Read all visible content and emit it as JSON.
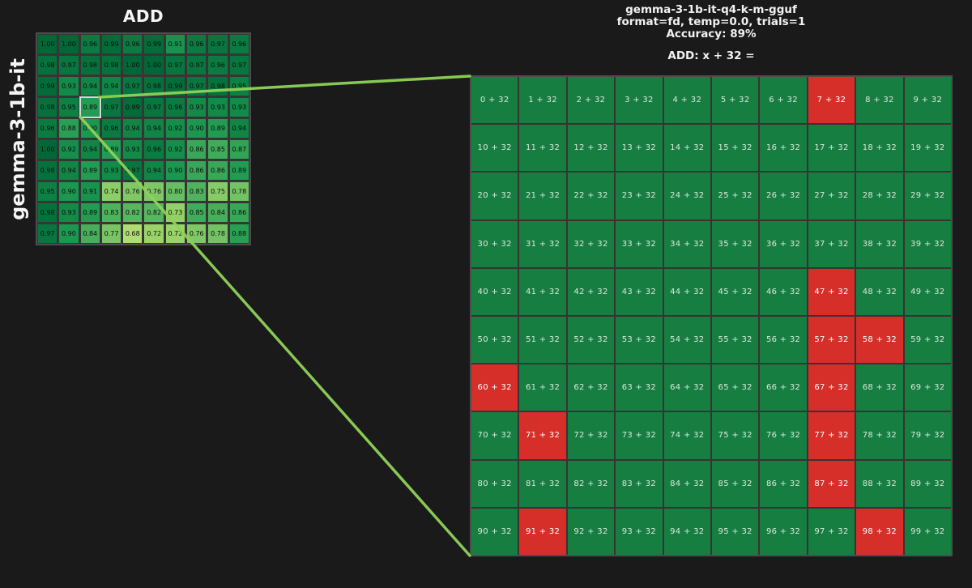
{
  "page": {
    "background": "#1a1a1a"
  },
  "heatmap_panel": {
    "title": "ADD",
    "ylabel": "gemma-3-1b-it",
    "selected_value": "0.89"
  },
  "detail_panel": {
    "title_line1": "gemma-3-1b-it-q4-k-m-gguf",
    "title_line2": "format=fd, temp=0.0, trials=1",
    "title_line3": "Accuracy: 89%",
    "accuracy_percent": 89,
    "subtitle": "ADD: x + 32 ="
  },
  "colors": {
    "background": "#1a1a1a",
    "correct_green": "#177e41",
    "incorrect_red": "#d62f2a",
    "connector_green": "#8ed258",
    "highlight_border": "#d9d9d9"
  },
  "chart_data": [
    {
      "type": "heatmap",
      "title": "ADD",
      "row_axis_label": "gemma-3-1b-it",
      "rows": 10,
      "cols": 10,
      "colormap": "RdYlGn",
      "vmin": 0,
      "vmax": 1,
      "values": [
        [
          1.0,
          1.0,
          0.96,
          0.99,
          0.96,
          0.99,
          0.91,
          0.96,
          0.97,
          0.96
        ],
        [
          0.98,
          0.97,
          0.98,
          0.98,
          1.0,
          1.0,
          0.97,
          0.97,
          0.96,
          0.97
        ],
        [
          0.99,
          0.93,
          0.94,
          0.94,
          0.97,
          0.98,
          0.99,
          0.97,
          0.98,
          0.95
        ],
        [
          0.98,
          0.95,
          0.89,
          0.97,
          0.99,
          0.97,
          0.96,
          0.93,
          0.93,
          0.93
        ],
        [
          0.96,
          0.88,
          0.9,
          0.96,
          0.94,
          0.94,
          0.92,
          0.9,
          0.89,
          0.94
        ],
        [
          1.0,
          0.92,
          0.94,
          0.89,
          0.93,
          0.96,
          0.92,
          0.86,
          0.85,
          0.87
        ],
        [
          0.98,
          0.94,
          0.89,
          0.93,
          0.97,
          0.94,
          0.9,
          0.86,
          0.86,
          0.89
        ],
        [
          0.95,
          0.9,
          0.91,
          0.74,
          0.76,
          0.76,
          0.8,
          0.83,
          0.75,
          0.78
        ],
        [
          0.98,
          0.93,
          0.89,
          0.83,
          0.82,
          0.82,
          0.73,
          0.85,
          0.84,
          0.86
        ],
        [
          0.97,
          0.9,
          0.84,
          0.77,
          0.68,
          0.72,
          0.72,
          0.76,
          0.78,
          0.88
        ]
      ],
      "highlight_cell": {
        "row": 3,
        "col": 2,
        "value": 0.89
      }
    },
    {
      "type": "heatmap",
      "title": "gemma-3-1b-it-q4-k-m-gguf / format=fd, temp=0.0, trials=1 / Accuracy: 89%",
      "subtitle": "ADD: x + 32 =",
      "rows": 10,
      "cols": 10,
      "operator": "+",
      "operand": 32,
      "x_range": [
        0,
        99
      ],
      "cell_label_format": "{x} + 32",
      "incorrect_x": [
        7,
        47,
        57,
        58,
        60,
        67,
        71,
        77,
        87,
        91,
        98
      ],
      "correct_color": "#177e41",
      "incorrect_color": "#d62f2a"
    }
  ]
}
